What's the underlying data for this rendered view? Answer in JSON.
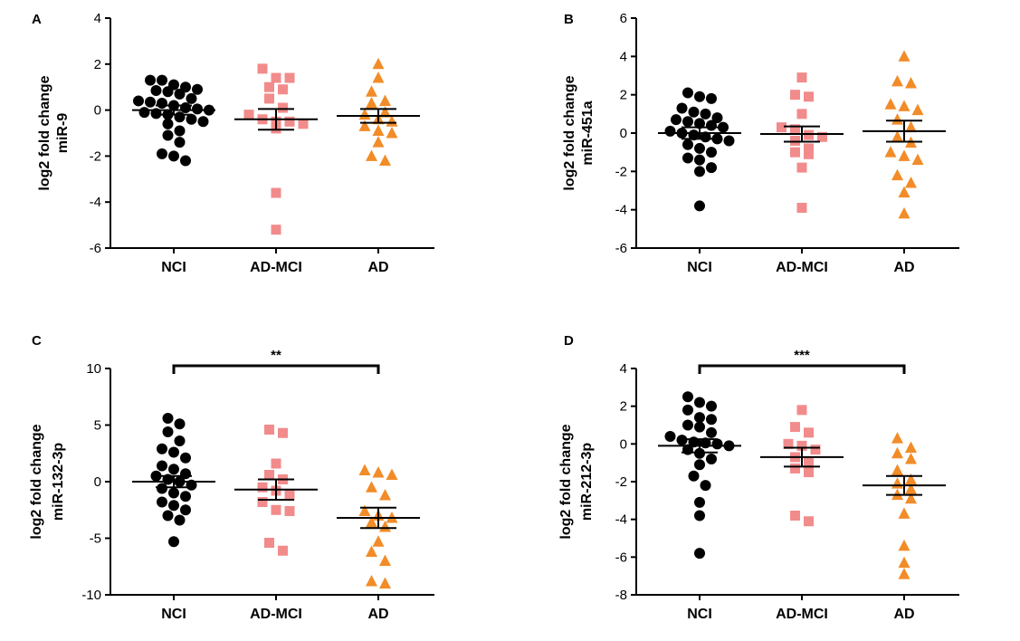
{
  "colors": {
    "NCI": "#000000",
    "AD-MCI": "#f28b8b",
    "AD": "#f28c28",
    "axis": "#000000"
  },
  "chart_data": [
    {
      "type": "scatter",
      "panel": "A",
      "ylabel_line1": "log2 fold change",
      "ylabel_line2": "miR-9",
      "categories": [
        "NCI",
        "AD-MCI",
        "AD"
      ],
      "ylim": [
        -6,
        4
      ],
      "yticks": [
        -6,
        -4,
        -2,
        0,
        2,
        4
      ],
      "series": [
        {
          "name": "NCI",
          "marker": "circle",
          "mean": 0.0,
          "sem": 0.2,
          "values": [
            1.3,
            1.3,
            1.1,
            1.0,
            0.9,
            0.85,
            0.8,
            0.7,
            0.5,
            0.4,
            0.35,
            0.3,
            0.2,
            0.1,
            0.05,
            0.0,
            -0.1,
            -0.15,
            -0.2,
            -0.3,
            -0.4,
            -0.5,
            -0.6,
            -0.9,
            -1.1,
            -1.4,
            -1.9,
            -2.0,
            -2.2
          ]
        },
        {
          "name": "AD-MCI",
          "marker": "square",
          "mean": -0.4,
          "sem": 0.45,
          "values": [
            1.8,
            1.4,
            1.4,
            1.0,
            0.9,
            0.5,
            0.1,
            -0.2,
            -0.4,
            -0.5,
            -0.5,
            -0.6,
            -0.8,
            -3.6,
            -5.2
          ]
        },
        {
          "name": "AD",
          "marker": "triangle",
          "mean": -0.25,
          "sem": 0.3,
          "values": [
            2.0,
            1.4,
            0.8,
            0.4,
            0.3,
            -0.1,
            -0.2,
            -0.4,
            -0.5,
            -0.7,
            -0.9,
            -1.0,
            -1.4,
            -2.0,
            -2.2
          ]
        }
      ]
    },
    {
      "type": "scatter",
      "panel": "B",
      "ylabel_line1": "log2 fold change",
      "ylabel_line2": "miR-451a",
      "categories": [
        "NCI",
        "AD-MCI",
        "AD"
      ],
      "ylim": [
        -6,
        6
      ],
      "yticks": [
        -6,
        -4,
        -2,
        0,
        2,
        4,
        6
      ],
      "series": [
        {
          "name": "NCI",
          "marker": "circle",
          "mean": 0.0,
          "sem": 0.3,
          "values": [
            2.1,
            1.9,
            1.8,
            1.3,
            1.1,
            1.0,
            0.8,
            0.7,
            0.6,
            0.5,
            0.4,
            0.3,
            0.1,
            0.0,
            -0.1,
            -0.2,
            -0.3,
            -0.4,
            -0.6,
            -0.8,
            -1.0,
            -1.3,
            -1.4,
            -1.8,
            -2.0,
            -3.8
          ]
        },
        {
          "name": "AD-MCI",
          "marker": "square",
          "mean": -0.05,
          "sem": 0.4,
          "values": [
            2.9,
            2.0,
            1.9,
            1.0,
            0.3,
            0.2,
            -0.1,
            -0.2,
            -0.4,
            -0.8,
            -1.0,
            -1.1,
            -1.8,
            -3.9
          ]
        },
        {
          "name": "AD",
          "marker": "triangle",
          "mean": 0.1,
          "sem": 0.55,
          "values": [
            4.0,
            2.7,
            2.6,
            1.5,
            1.4,
            1.2,
            0.7,
            0.3,
            -0.2,
            -0.5,
            -1.0,
            -1.2,
            -1.4,
            -2.2,
            -2.6,
            -3.1,
            -4.2
          ]
        }
      ]
    },
    {
      "type": "scatter",
      "panel": "C",
      "ylabel_line1": "log2 fold change",
      "ylabel_line2": "miR-132-3p",
      "categories": [
        "NCI",
        "AD-MCI",
        "AD"
      ],
      "ylim": [
        -10,
        10
      ],
      "yticks": [
        -10,
        -5,
        0,
        5,
        10
      ],
      "significance": {
        "from": "NCI",
        "to": "AD",
        "label": "**"
      },
      "series": [
        {
          "name": "NCI",
          "marker": "circle",
          "mean": 0.0,
          "sem": 0.5,
          "values": [
            5.6,
            5.1,
            4.4,
            3.6,
            2.9,
            2.6,
            2.1,
            1.4,
            1.1,
            0.7,
            0.5,
            0.2,
            0.0,
            -0.3,
            -0.6,
            -1.0,
            -1.3,
            -1.8,
            -2.1,
            -2.5,
            -3.0,
            -3.4,
            -5.3
          ]
        },
        {
          "name": "AD-MCI",
          "marker": "square",
          "mean": -0.7,
          "sem": 0.9,
          "values": [
            4.6,
            4.3,
            1.6,
            0.6,
            0.2,
            -0.5,
            -0.8,
            -1.2,
            -1.8,
            -2.5,
            -2.6,
            -5.4,
            -6.1
          ]
        },
        {
          "name": "AD",
          "marker": "triangle",
          "mean": -3.2,
          "sem": 0.9,
          "values": [
            1.0,
            0.8,
            0.6,
            -0.5,
            -1.2,
            -2.6,
            -3.0,
            -3.2,
            -3.6,
            -4.0,
            -5.3,
            -6.2,
            -7.0,
            -8.8,
            -9.0
          ]
        }
      ]
    },
    {
      "type": "scatter",
      "panel": "D",
      "ylabel_line1": "log2 fold change",
      "ylabel_line2": "miR-212-3p",
      "categories": [
        "NCI",
        "AD-MCI",
        "AD"
      ],
      "ylim": [
        -8,
        4
      ],
      "yticks": [
        -8,
        -6,
        -4,
        -2,
        0,
        2,
        4
      ],
      "significance": {
        "from": "NCI",
        "to": "AD",
        "label": "***"
      },
      "series": [
        {
          "name": "NCI",
          "marker": "circle",
          "mean": -0.1,
          "sem": 0.35,
          "values": [
            2.5,
            2.2,
            2.0,
            1.8,
            1.4,
            1.3,
            1.0,
            0.9,
            0.6,
            0.4,
            0.2,
            0.1,
            0.05,
            0.0,
            -0.1,
            -0.3,
            -0.5,
            -0.8,
            -1.1,
            -1.7,
            -2.2,
            -3.1,
            -3.8,
            -5.8
          ]
        },
        {
          "name": "AD-MCI",
          "marker": "square",
          "mean": -0.7,
          "sem": 0.5,
          "values": [
            1.8,
            0.9,
            0.6,
            0.0,
            -0.1,
            -0.3,
            -0.7,
            -1.0,
            -1.3,
            -1.5,
            -3.8,
            -4.1
          ]
        },
        {
          "name": "AD",
          "marker": "triangle",
          "mean": -2.2,
          "sem": 0.5,
          "values": [
            0.3,
            -0.2,
            -0.5,
            -0.8,
            -1.4,
            -1.9,
            -2.1,
            -2.4,
            -2.7,
            -2.9,
            -3.7,
            -5.4,
            -6.3,
            -6.9
          ]
        }
      ]
    }
  ]
}
